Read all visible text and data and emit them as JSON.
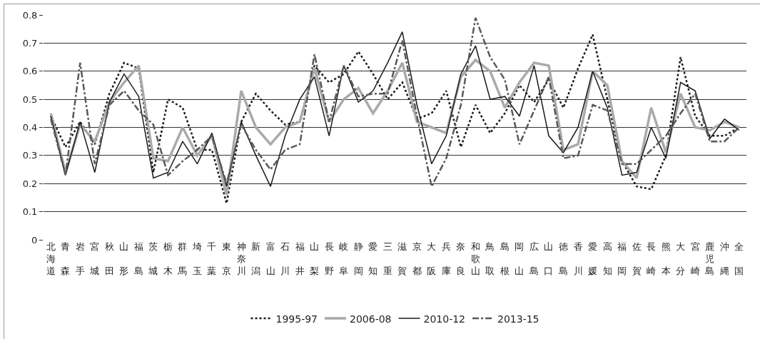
{
  "chart_data": {
    "type": "line",
    "categories": [
      "北海道",
      "青森",
      "岩手",
      "宮城",
      "秋田",
      "山形",
      "福島",
      "茨城",
      "栃木",
      "群馬",
      "埼玉",
      "千葉",
      "東京",
      "神奈川",
      "新潟",
      "富山",
      "石川",
      "福井",
      "山梨",
      "長野",
      "岐阜",
      "静岡",
      "愛知",
      "三重",
      "滋賀",
      "京都",
      "大阪",
      "兵庫",
      "奈良",
      "和歌山",
      "鳥取",
      "島根",
      "岡山",
      "広島",
      "山口",
      "徳島",
      "香川",
      "愛媛",
      "高知",
      "福岡",
      "佐賀",
      "長崎",
      "熊本",
      "大分",
      "宮崎",
      "鹿児島",
      "沖縄",
      "全国"
    ],
    "series": [
      {
        "name": "1995-97",
        "color": "#1a1a1a",
        "line_style": "dotted",
        "values": [
          0.44,
          0.33,
          0.42,
          0.34,
          0.52,
          0.63,
          0.61,
          0.24,
          0.5,
          0.47,
          0.32,
          0.32,
          0.13,
          0.42,
          0.52,
          0.46,
          0.41,
          0.42,
          0.62,
          0.56,
          0.59,
          0.67,
          0.59,
          0.5,
          0.56,
          0.43,
          0.45,
          0.53,
          0.33,
          0.48,
          0.38,
          0.45,
          0.55,
          0.49,
          0.57,
          0.47,
          0.61,
          0.73,
          0.5,
          0.28,
          0.19,
          0.18,
          0.3,
          0.65,
          0.44,
          0.37,
          0.37,
          0.4
        ]
      },
      {
        "name": "2006-08",
        "color": "#aaaaaa",
        "line_style": "solid",
        "values": [
          0.45,
          0.24,
          0.41,
          0.35,
          0.49,
          0.56,
          0.62,
          0.29,
          0.28,
          0.4,
          0.3,
          0.37,
          0.16,
          0.53,
          0.4,
          0.34,
          0.4,
          0.42,
          0.61,
          0.42,
          0.5,
          0.54,
          0.45,
          0.53,
          0.63,
          0.42,
          0.4,
          0.38,
          0.58,
          0.64,
          0.6,
          0.47,
          0.56,
          0.63,
          0.62,
          0.32,
          0.34,
          0.6,
          0.55,
          0.28,
          0.22,
          0.47,
          0.31,
          0.52,
          0.4,
          0.39,
          0.42,
          0.4
        ]
      },
      {
        "name": "2010-12",
        "color": "#1a1a1a",
        "line_style": "solid",
        "values": [
          0.44,
          0.23,
          0.42,
          0.24,
          0.49,
          0.59,
          0.51,
          0.22,
          0.24,
          0.35,
          0.27,
          0.38,
          0.19,
          0.42,
          0.3,
          0.19,
          0.37,
          0.5,
          0.58,
          0.37,
          0.62,
          0.49,
          0.53,
          0.63,
          0.74,
          0.48,
          0.27,
          0.37,
          0.59,
          0.69,
          0.5,
          0.51,
          0.44,
          0.62,
          0.37,
          0.31,
          0.4,
          0.6,
          0.47,
          0.23,
          0.24,
          0.4,
          0.29,
          0.56,
          0.53,
          0.36,
          0.43,
          0.39
        ]
      },
      {
        "name": "2013-15",
        "color": "#595959",
        "line_style": "dashed",
        "values": [
          0.43,
          0.23,
          0.63,
          0.27,
          0.48,
          0.53,
          0.46,
          0.41,
          0.23,
          0.28,
          0.32,
          0.37,
          0.2,
          0.41,
          0.32,
          0.25,
          0.32,
          0.34,
          0.66,
          0.42,
          0.62,
          0.51,
          0.52,
          0.52,
          0.71,
          0.44,
          0.19,
          0.29,
          0.48,
          0.79,
          0.65,
          0.57,
          0.34,
          0.46,
          0.58,
          0.29,
          0.3,
          0.48,
          0.46,
          0.27,
          0.27,
          0.32,
          0.37,
          0.45,
          0.52,
          0.35,
          0.35,
          0.4
        ]
      }
    ],
    "ylim": [
      0,
      0.8
    ],
    "yticks": [
      0,
      0.1,
      0.2,
      0.3,
      0.4,
      0.5,
      0.6,
      0.7,
      0.8
    ],
    "grid": "y",
    "legend": "bottom",
    "marker": "none"
  }
}
